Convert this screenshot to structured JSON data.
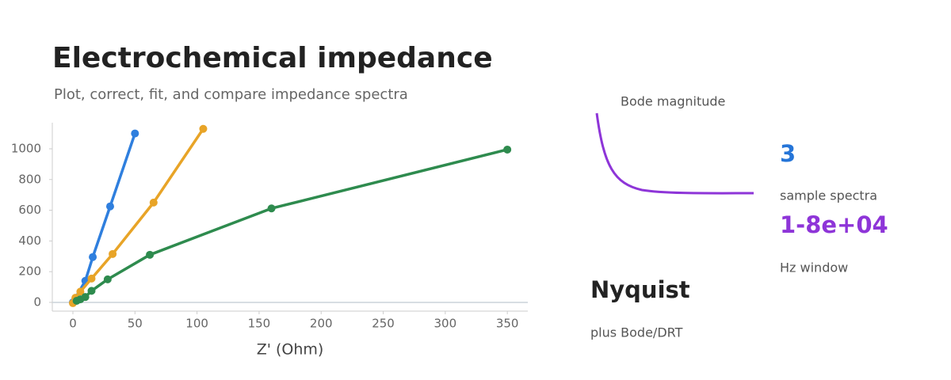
{
  "header": {
    "title": "Electrochemical impedance",
    "subtitle": "Plot, correct, fit, and compare impedance spectra"
  },
  "chart_data": {
    "type": "line",
    "xlabel": "Z' (Ohm)",
    "xlim": [
      -16.6,
      366.5
    ],
    "xticks": [
      0,
      50,
      100,
      150,
      200,
      250,
      300,
      350
    ],
    "ylim": [
      -57,
      1170
    ],
    "yticks": [
      0,
      200,
      400,
      600,
      800,
      1000
    ],
    "series": [
      {
        "color": "#2f7fde",
        "x": [
          0,
          10,
          16,
          30,
          50
        ],
        "values": [
          0,
          140,
          295,
          625,
          1100
        ]
      },
      {
        "color": "#e8a427",
        "x": [
          0,
          2,
          6,
          15,
          32,
          65,
          105
        ],
        "values": [
          -5,
          30,
          70,
          155,
          315,
          650,
          1130
        ]
      },
      {
        "color": "#2e8b4e",
        "x": [
          3,
          6,
          10,
          15,
          28,
          62,
          160,
          350
        ],
        "values": [
          10,
          20,
          35,
          75,
          150,
          310,
          612,
          995
        ]
      }
    ]
  },
  "bode": {
    "label": "Bode magnitude",
    "color": "#8e35d8"
  },
  "stats": [
    {
      "value": "3",
      "label": "sample spectra",
      "color": "#2575d8"
    },
    {
      "value": "1-8e+04",
      "label": "Hz window",
      "color": "#8e35d8"
    }
  ],
  "feature": {
    "title": "Nyquist",
    "subtitle": "plus Bode/DRT"
  }
}
